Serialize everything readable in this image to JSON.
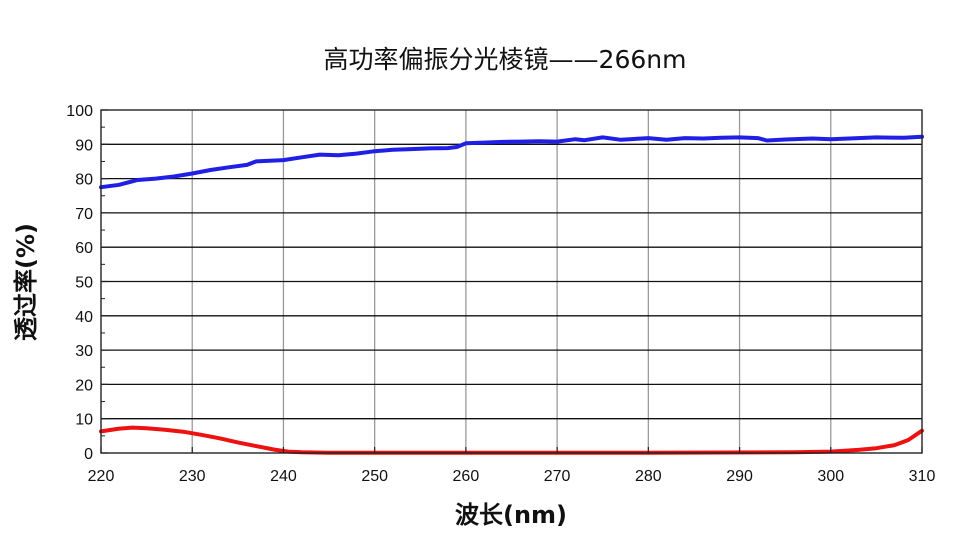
{
  "chart_data": {
    "type": "line",
    "title": "高功率偏振分光棱镜——266nm",
    "xlabel": "波长(nm)",
    "ylabel": "透过率(%)",
    "xlim": [
      220,
      310
    ],
    "ylim": [
      0,
      100
    ],
    "xticks": [
      "220",
      "230",
      "240",
      "250",
      "260",
      "270",
      "280",
      "290",
      "300",
      "310"
    ],
    "yticks": [
      "0",
      "10",
      "20",
      "30",
      "40",
      "50",
      "60",
      "70",
      "80",
      "90",
      "100"
    ],
    "grid": true,
    "series": [
      {
        "color": "#1f1fe6",
        "points": [
          [
            220,
            77.5
          ],
          [
            222,
            78.2
          ],
          [
            224,
            79.6
          ],
          [
            226,
            80.0
          ],
          [
            228,
            80.6
          ],
          [
            230,
            81.5
          ],
          [
            232,
            82.5
          ],
          [
            234,
            83.3
          ],
          [
            236,
            84.0
          ],
          [
            237,
            85.0
          ],
          [
            240,
            85.4
          ],
          [
            242,
            86.2
          ],
          [
            244,
            87.0
          ],
          [
            246,
            86.8
          ],
          [
            248,
            87.3
          ],
          [
            250,
            88.0
          ],
          [
            252,
            88.4
          ],
          [
            254,
            88.6
          ],
          [
            256,
            88.8
          ],
          [
            258,
            88.9
          ],
          [
            259,
            89.2
          ],
          [
            260,
            90.3
          ],
          [
            262,
            90.5
          ],
          [
            264,
            90.7
          ],
          [
            266,
            90.8
          ],
          [
            268,
            90.9
          ],
          [
            270,
            90.8
          ],
          [
            272,
            91.5
          ],
          [
            273,
            91.2
          ],
          [
            275,
            92.0
          ],
          [
            277,
            91.3
          ],
          [
            280,
            91.8
          ],
          [
            282,
            91.3
          ],
          [
            284,
            91.8
          ],
          [
            286,
            91.7
          ],
          [
            288,
            91.9
          ],
          [
            290,
            92.0
          ],
          [
            292,
            91.8
          ],
          [
            293,
            91.1
          ],
          [
            295,
            91.4
          ],
          [
            298,
            91.7
          ],
          [
            300,
            91.5
          ],
          [
            303,
            91.8
          ],
          [
            305,
            92.0
          ],
          [
            308,
            91.9
          ],
          [
            310,
            92.2
          ]
        ]
      },
      {
        "color": "#ee1111",
        "points": [
          [
            220,
            6.3
          ],
          [
            222,
            7.1
          ],
          [
            223.5,
            7.4
          ],
          [
            225,
            7.2
          ],
          [
            227,
            6.8
          ],
          [
            229,
            6.2
          ],
          [
            231,
            5.3
          ],
          [
            233,
            4.3
          ],
          [
            235,
            3.1
          ],
          [
            237,
            2.0
          ],
          [
            239,
            1.0
          ],
          [
            240.5,
            0.4
          ],
          [
            242,
            0.2
          ],
          [
            245,
            0.1
          ],
          [
            260,
            0.1
          ],
          [
            280,
            0.1
          ],
          [
            296,
            0.2
          ],
          [
            300,
            0.4
          ],
          [
            303,
            0.9
          ],
          [
            305,
            1.4
          ],
          [
            307,
            2.3
          ],
          [
            308.5,
            3.8
          ],
          [
            310,
            6.5
          ]
        ]
      }
    ]
  }
}
